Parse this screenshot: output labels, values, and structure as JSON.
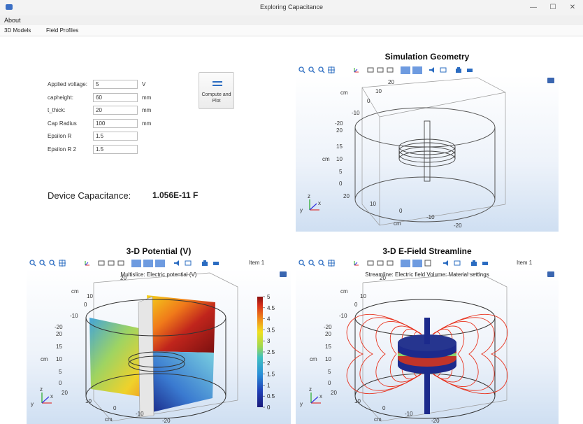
{
  "window": {
    "title": "Exploring Capacitance",
    "minimize": "—",
    "maximize": "☐",
    "close": "✕"
  },
  "menu": {
    "about": "About"
  },
  "ribbon": {
    "tab1": "3D Models",
    "tab2": "Field Profiles"
  },
  "inputs": [
    {
      "label": "Applied voltage:",
      "value": "5",
      "unit": "V"
    },
    {
      "label": "capheight:",
      "value": "60",
      "unit": "mm"
    },
    {
      "label": "t_thick:",
      "value": "20",
      "unit": "mm"
    },
    {
      "label": "Cap Radius",
      "value": "100",
      "unit": "mm"
    },
    {
      "label": "Epsilon R",
      "value": "1.5",
      "unit": ""
    },
    {
      "label": "Epsilon R 2",
      "value": "1.5",
      "unit": ""
    }
  ],
  "compute_button": {
    "line1": "Compute and",
    "line2": "Plot"
  },
  "capacitance": {
    "label": "Device Capacitance:",
    "value": "1.056E-11 F"
  },
  "geometry": {
    "title": "Simulation Geometry",
    "axis_unit": "cm",
    "ticks_top": [
      "20",
      "10",
      "0",
      "-10"
    ],
    "ticks_z": [
      "-20",
      "20",
      "15",
      "10",
      "5",
      "0"
    ],
    "ticks_bottom": [
      "20",
      "10",
      "0",
      "-10",
      "-20"
    ],
    "axes": {
      "x": "x",
      "y": "y",
      "z": "z"
    }
  },
  "potential": {
    "title": "3-D Potential (V)",
    "item_label": "Item 1",
    "caption": "Multislice: Electric potential (V)",
    "axis_unit": "cm",
    "ticks_top": [
      "20",
      "10",
      "0",
      "-10"
    ],
    "ticks_z": [
      "-20",
      "20",
      "15",
      "10",
      "5",
      "0"
    ],
    "ticks_bottom": [
      "20",
      "10",
      "0",
      "-10",
      "-20"
    ],
    "colorbar_ticks": [
      "5",
      "4.5",
      "4",
      "3.5",
      "3",
      "2.5",
      "2",
      "1.5",
      "1",
      "0.5",
      "0"
    ],
    "axes": {
      "x": "x",
      "y": "y",
      "z": "z"
    }
  },
  "streamline": {
    "title": "3-D E-Field Streamline",
    "item_label": "Item 1",
    "caption": "Streamline: Electric field  Volume: Material settings",
    "axis_unit": "cm",
    "ticks_top": [
      "20",
      "10",
      "0",
      "-10"
    ],
    "ticks_z": [
      "-20",
      "20",
      "15",
      "10",
      "5",
      "0"
    ],
    "ticks_bottom": [
      "20",
      "10",
      "0",
      "-10",
      "-20"
    ],
    "axes": {
      "x": "x",
      "y": "y",
      "z": "z"
    }
  },
  "colors": {
    "accent": "#2b6cc1",
    "streamline": "#e8331f",
    "plate_blue": "#1c2a8c",
    "plate_red": "#c0342a",
    "plate_green": "#8ed36a"
  },
  "toolbar_icons": [
    "zoom-in-icon",
    "zoom-out-icon",
    "zoom-box-icon",
    "zoom-extents-icon",
    "axes-orientation-icon",
    "view-xy-icon",
    "view-yz-icon",
    "view-zx-icon",
    "transparency-icon",
    "wireframe-icon",
    "reset-view-icon",
    "scene-light-icon",
    "screenshot-icon",
    "print-icon"
  ]
}
